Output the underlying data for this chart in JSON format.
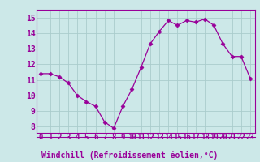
{
  "x": [
    0,
    1,
    2,
    3,
    4,
    5,
    6,
    7,
    8,
    9,
    10,
    11,
    12,
    13,
    14,
    15,
    16,
    17,
    18,
    19,
    20,
    21,
    22,
    23
  ],
  "y": [
    11.4,
    11.4,
    11.2,
    10.8,
    10.0,
    9.6,
    9.3,
    8.3,
    7.9,
    9.3,
    10.4,
    11.8,
    13.3,
    14.1,
    14.8,
    14.5,
    14.8,
    14.7,
    14.9,
    14.5,
    13.3,
    12.5,
    12.5,
    11.1
  ],
  "line_color": "#990099",
  "marker": "D",
  "marker_size": 2.5,
  "bg_color": "#cce8e8",
  "grid_color": "#aacccc",
  "xlabel": "Windchill (Refroidissement éolien,°C)",
  "xlabel_color": "#990099",
  "ylabel_ticks": [
    8,
    9,
    10,
    11,
    12,
    13,
    14,
    15
  ],
  "xlim": [
    -0.5,
    23.5
  ],
  "ylim": [
    7.6,
    15.5
  ],
  "tick_color": "#990099",
  "spine_color": "#990099",
  "tick_fontsize": 6.5,
  "xlabel_fontsize": 7
}
